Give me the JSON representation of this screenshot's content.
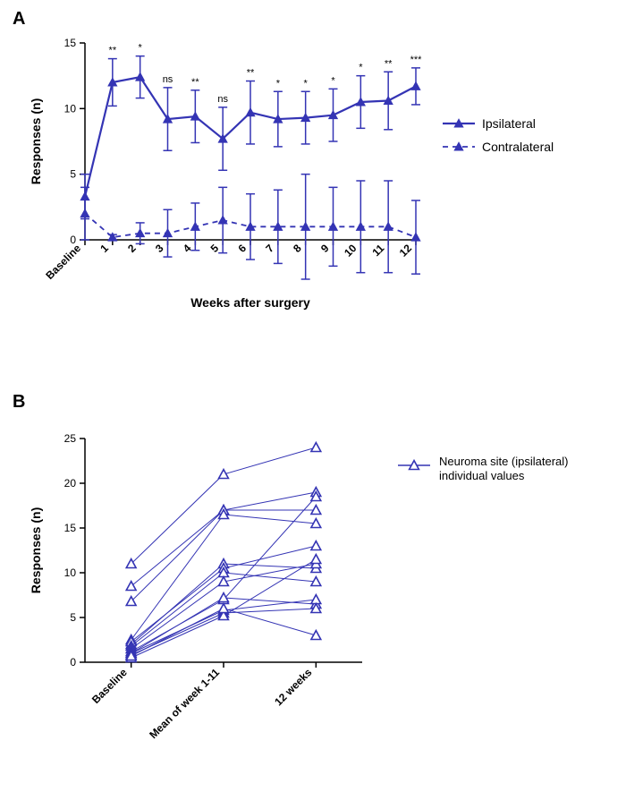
{
  "panelA": {
    "label": "A",
    "type": "line-errorbar",
    "x_axis_label": "Weeks after surgery",
    "y_axis_label": "Responses (n)",
    "x_categories": [
      "Baseline",
      "1",
      "2",
      "3",
      "4",
      "5",
      "6",
      "7",
      "8",
      "9",
      "10",
      "11",
      "12"
    ],
    "ylim": [
      0,
      15
    ],
    "yticks": [
      0,
      5,
      10,
      15
    ],
    "tick_fontsize": 12,
    "axis_label_fontsize": 14,
    "axis_color": "#000000",
    "axis_width": 1.5,
    "marker": "triangle",
    "marker_size": 8,
    "error_cap": 5,
    "error_width": 1.5,
    "series": [
      {
        "name": "Ipsilateral",
        "color": "#3434b4",
        "dash": "solid",
        "line_width": 2.2,
        "values": [
          3.3,
          12.0,
          12.4,
          9.2,
          9.4,
          7.7,
          9.7,
          9.2,
          9.3,
          9.5,
          10.5,
          10.6,
          11.7
        ],
        "err": [
          1.7,
          1.8,
          1.6,
          2.4,
          2.0,
          2.4,
          2.4,
          2.1,
          2.0,
          2.0,
          2.0,
          2.2,
          1.4
        ],
        "sig": [
          "",
          "**",
          "*",
          "ns",
          "**",
          "ns",
          "**",
          "*",
          "*",
          "*",
          "*",
          "**",
          "***"
        ]
      },
      {
        "name": "Contralateral",
        "color": "#3434b4",
        "dash": "6,5",
        "line_width": 1.8,
        "values": [
          2.0,
          0.2,
          0.5,
          0.5,
          1.0,
          1.5,
          1.0,
          1.0,
          1.0,
          1.0,
          1.0,
          1.0,
          0.2
        ],
        "err": [
          2.0,
          0.2,
          0.8,
          1.8,
          1.8,
          2.5,
          2.5,
          2.8,
          4.0,
          3.0,
          3.5,
          3.5,
          2.8
        ],
        "sig": [
          "",
          "",
          "",
          "",
          "",
          "",
          "",
          "",
          "",
          "",
          "",
          "",
          ""
        ]
      }
    ],
    "legend_fontsize": 14
  },
  "panelB": {
    "label": "B",
    "type": "paired-individual",
    "y_axis_label": "Responses (n)",
    "x_categories": [
      "Baseline",
      "Mean of week 1-11",
      "12 weeks"
    ],
    "ylim": [
      0,
      25
    ],
    "yticks": [
      0,
      5,
      10,
      15,
      20,
      25
    ],
    "tick_fontsize": 12,
    "axis_label_fontsize": 14,
    "axis_color": "#000000",
    "axis_width": 1.5,
    "marker": "triangle-open",
    "marker_size": 9,
    "color": "#3434b4",
    "line_width": 1.0,
    "legend_label_line1": "Neuroma site (ipsilateral)",
    "legend_label_line2": "individual values",
    "legend_fontsize": 13,
    "individuals": [
      [
        11.0,
        21.0,
        24.0
      ],
      [
        8.5,
        17.0,
        17.0
      ],
      [
        6.8,
        17.0,
        19.0
      ],
      [
        2.5,
        16.5,
        15.5
      ],
      [
        2.0,
        11.0,
        10.5
      ],
      [
        2.3,
        10.5,
        13.0
      ],
      [
        1.8,
        10.0,
        9.0
      ],
      [
        1.5,
        9.0,
        11.0
      ],
      [
        1.2,
        7.0,
        18.5
      ],
      [
        1.0,
        7.2,
        6.5
      ],
      [
        1.0,
        5.8,
        7.0
      ],
      [
        0.8,
        5.5,
        6.0
      ],
      [
        0.5,
        5.2,
        11.5
      ],
      [
        0.7,
        6.0,
        3.0
      ]
    ]
  }
}
